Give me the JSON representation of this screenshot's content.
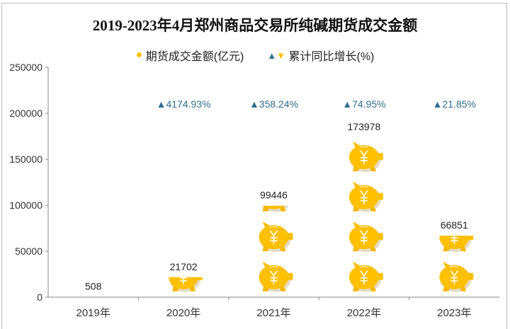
{
  "chart_data": {
    "type": "bar",
    "title": "2019-2023年4月郑州商品交易所纯碱期货成交金额",
    "categories": [
      "2019年",
      "2020年",
      "2021年",
      "2022年",
      "2023年"
    ],
    "series": [
      {
        "name": "期货成交金额(亿元)",
        "values": [
          508,
          21702,
          99446,
          173978,
          66851
        ],
        "data_labels": [
          "508",
          "21702",
          "99446",
          "173978",
          "66851"
        ]
      },
      {
        "name": "累计同比增长(%)",
        "values": [
          null,
          4174.93,
          358.24,
          74.95,
          21.85
        ],
        "data_labels": [
          "",
          "4174.93%",
          "358.24%",
          "74.95%",
          "21.85%"
        ]
      }
    ],
    "ylim": [
      0,
      250000
    ],
    "yticks": [
      "0",
      "50000",
      "100000",
      "150000",
      "200000",
      "250000"
    ],
    "grid": false,
    "legend": "top",
    "pictograph_icon": "piggy-bank-yen-icon",
    "colors": {
      "bar": "#FFC000",
      "growth": "#2E6E8E",
      "down": "#FFC000"
    }
  }
}
